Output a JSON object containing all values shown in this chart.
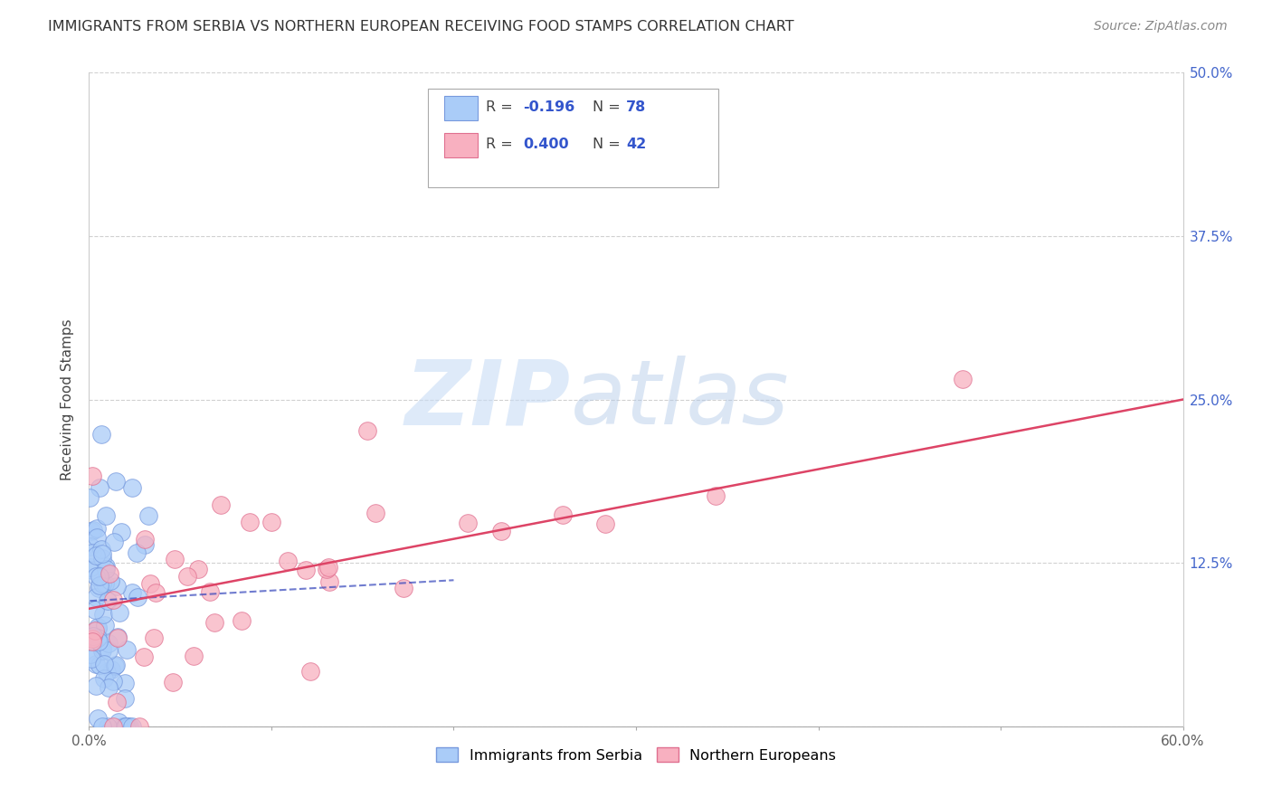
{
  "title": "IMMIGRANTS FROM SERBIA VS NORTHERN EUROPEAN RECEIVING FOOD STAMPS CORRELATION CHART",
  "source": "Source: ZipAtlas.com",
  "ylabel": "Receiving Food Stamps",
  "xlim": [
    0,
    0.6
  ],
  "ylim": [
    0,
    0.5
  ],
  "yticks": [
    0.0,
    0.125,
    0.25,
    0.375,
    0.5
  ],
  "yticklabels_right": [
    "",
    "12.5%",
    "25.0%",
    "37.5%",
    "50.0%"
  ],
  "series1_color": "#aaccf8",
  "series1_edge": "#7799dd",
  "series2_color": "#f8b0c0",
  "series2_edge": "#e07090",
  "line1_color": "#3344bb",
  "line2_color": "#dd4466",
  "watermark_zip": "ZIP",
  "watermark_atlas": "atlas",
  "background": "#ffffff",
  "grid_color": "#cccccc",
  "title_color": "#333333",
  "source_color": "#888888",
  "series1_label": "Immigrants from Serbia",
  "series2_label": "Northern Europeans",
  "legend_r1": "-0.196",
  "legend_n1": "78",
  "legend_r2": "0.400",
  "legend_n2": "42"
}
